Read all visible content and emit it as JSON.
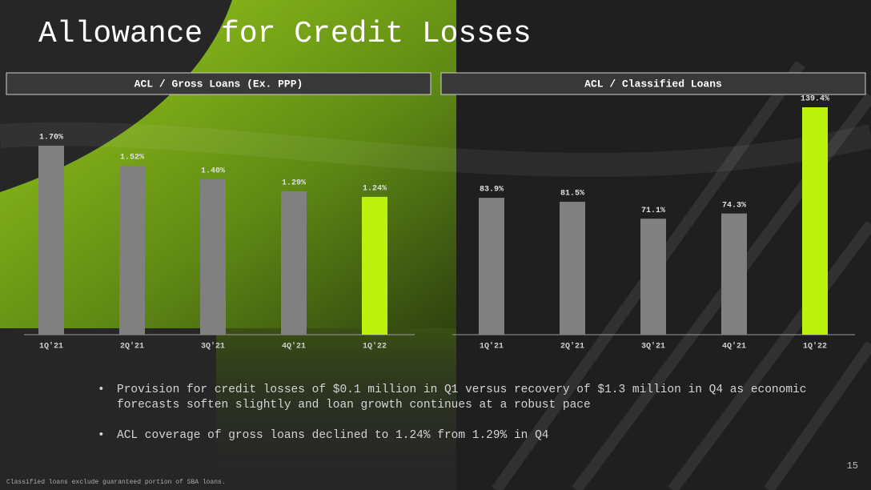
{
  "title": "Allowance for Credit Losses",
  "bullets": [
    "Provision for credit losses of $0.1 million in Q1 versus recovery of $1.3 million in Q4 as economic forecasts soften slightly and loan growth continues at a robust pace",
    "ACL coverage of gross loans declined to 1.24% from 1.29% in Q4"
  ],
  "page_number": "15",
  "footnote": "Classified loans exclude guaranteed portion of SBA loans.",
  "chart_data": [
    {
      "type": "bar",
      "title": "ACL / Gross Loans (Ex. PPP)",
      "categories": [
        "1Q'21",
        "2Q'21",
        "3Q'21",
        "4Q'21",
        "1Q'22"
      ],
      "values": [
        1.7,
        1.52,
        1.4,
        1.29,
        1.24
      ],
      "value_labels": [
        "1.70%",
        "1.52%",
        "1.40%",
        "1.29%",
        "1.24%"
      ],
      "colors": [
        "#808080",
        "#808080",
        "#808080",
        "#808080",
        "#bdf20c"
      ]
    },
    {
      "type": "bar",
      "title": "ACL / Classified Loans",
      "categories": [
        "1Q'21",
        "2Q'21",
        "3Q'21",
        "4Q'21",
        "1Q'22"
      ],
      "values": [
        83.9,
        81.5,
        71.1,
        74.3,
        139.4
      ],
      "value_labels": [
        "83.9%",
        "81.5%",
        "71.1%",
        "74.3%",
        "139.4%"
      ],
      "colors": [
        "#808080",
        "#808080",
        "#808080",
        "#808080",
        "#bdf20c"
      ]
    }
  ]
}
